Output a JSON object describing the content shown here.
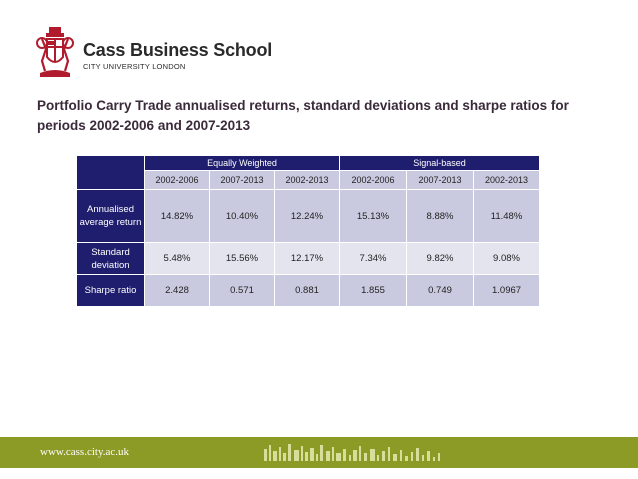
{
  "logo": {
    "name": "Cass Business School",
    "subtitle": "CITY UNIVERSITY LONDON"
  },
  "slide": {
    "title": "Portfolio Carry Trade annualised returns, standard deviations and sharpe ratios for periods 2002-2006 and 2007-2013"
  },
  "table": {
    "groups": [
      "Equally Weighted",
      "Signal-based"
    ],
    "periods": [
      "2002-2006",
      "2007-2013",
      "2002-2013",
      "2002-2006",
      "2007-2013",
      "2002-2013"
    ],
    "rows": [
      {
        "label": "Annualised average return",
        "values": [
          "14.82%",
          "10.40%",
          "12.24%",
          "15.13%",
          "8.88%",
          "11.48%"
        ]
      },
      {
        "label": "Standard deviation",
        "values": [
          "5.48%",
          "15.56%",
          "12.17%",
          "7.34%",
          "9.82%",
          "9.08%"
        ]
      },
      {
        "label": "Sharpe ratio",
        "values": [
          "2.428",
          "0.571",
          "0.881",
          "1.855",
          "0.749",
          "1.0967"
        ]
      }
    ]
  },
  "footer": {
    "url": "www.cass.city.ac.uk"
  },
  "colors": {
    "header_navy": "#1f1d6e",
    "cell_dark": "#c9cadf",
    "cell_light": "#e4e4ef",
    "footer_green": "#8c9a26",
    "crest_red": "#b01c2e"
  }
}
